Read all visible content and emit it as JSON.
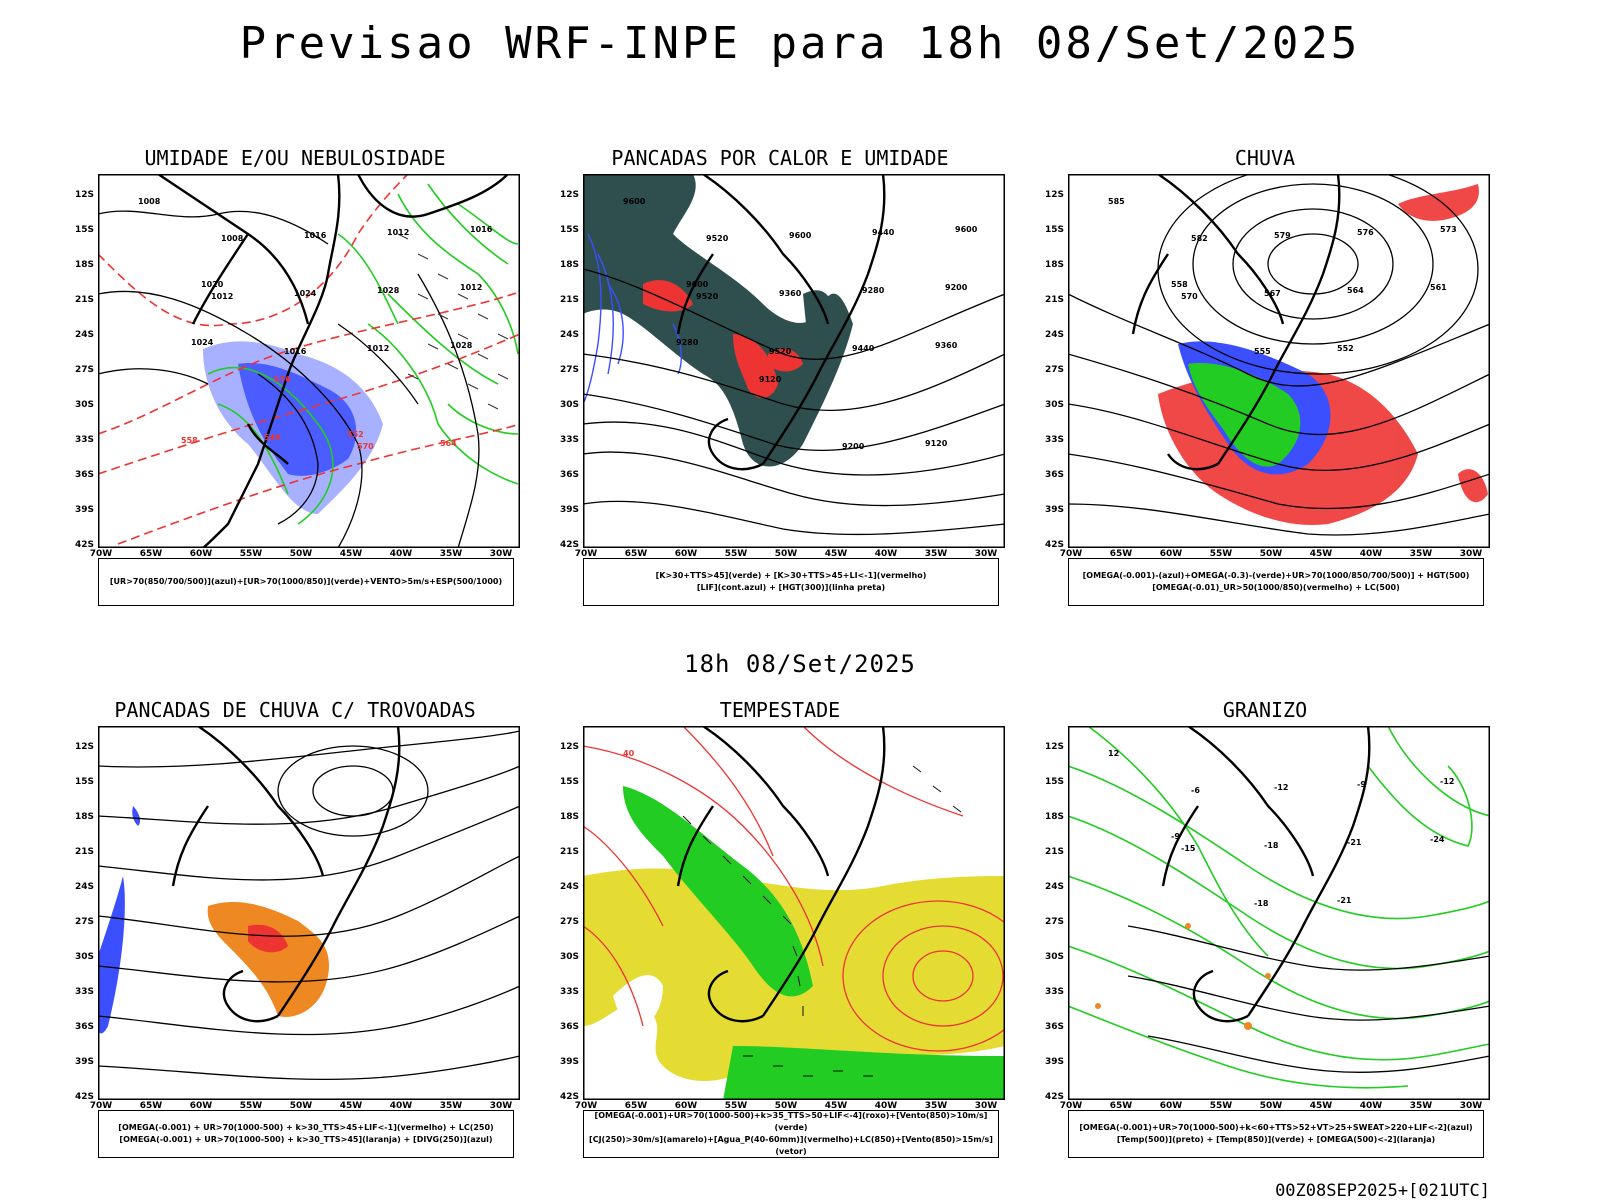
{
  "page": {
    "title": "Previsao WRF-INPE  para 18h 08/Set/2025",
    "subtitle": "18h 08/Set/2025",
    "footer": "00Z08SEP2025+[021UTC]"
  },
  "axes": {
    "lat_labels": [
      "12S",
      "15S",
      "18S",
      "21S",
      "24S",
      "27S",
      "30S",
      "33S",
      "36S",
      "39S",
      "42S"
    ],
    "lon_labels": [
      "70W",
      "65W",
      "60W",
      "55W",
      "50W",
      "45W",
      "40W",
      "35W",
      "30W"
    ]
  },
  "colors": {
    "blue": "#3b4fff",
    "green": "#22cc22",
    "red": "#ee3333",
    "orange": "#ee8822",
    "yellow": "#e4dc33",
    "dark_teal": "#2f4f4f",
    "light_blue": "#9fa8ff"
  },
  "panels": [
    {
      "id": "umidade",
      "title": "UMIDADE E/OU NEBULOSIDADE",
      "legend": [
        "[UR>70(850/700/500)](azul)+[UR>70(1000/850)](verde)+VENTO>5m/s+ESP(500/1000)"
      ],
      "contour_labels": [
        "1008",
        "1008",
        "1016",
        "1012",
        "1016",
        "1012",
        "1024",
        "1028",
        "1012",
        "1020",
        "1016",
        "1012",
        "1028",
        "1024",
        "576",
        "570",
        "564",
        "558",
        "546",
        "552"
      ]
    },
    {
      "id": "pancadas_calor",
      "title": "PANCADAS POR CALOR E UMIDADE",
      "legend": [
        "[K>30+TTS>45](verde) + [K>30+TTS>45+LI<-1](vermelho)",
        "[LIF](cont.azul) + [HGT(300)](linha preta)"
      ],
      "contour_labels": [
        "9600",
        "9520",
        "9600",
        "9440",
        "9600",
        "9520",
        "9360",
        "9280",
        "9200",
        "9600",
        "9520",
        "9440",
        "9360",
        "9280",
        "9120",
        "9200",
        "9120"
      ]
    },
    {
      "id": "chuva",
      "title": "CHUVA",
      "legend": [
        "[OMEGA(-0.001)-(azul)+OMEGA(-0.3)-(verde)+UR>70(1000/850/700/500)] + HGT(500)",
        "[OMEGA(-0.01)_UR>50(1000/850)(vermelho) + LC(500)"
      ],
      "contour_labels": [
        "585",
        "582",
        "579",
        "576",
        "573",
        "570",
        "567",
        "564",
        "561",
        "558",
        "555",
        "552"
      ]
    },
    {
      "id": "trovoadas",
      "title": "PANCADAS DE CHUVA C/ TROVOADAS",
      "legend": [
        "[OMEGA(-0.001) + UR>70(1000-500) + k>30_TTS>45+LIF<-1](vermelho) + LC(250)",
        "[OMEGA(-0.001) + UR>70(1000-500) + k>30_TTS>45](laranja) + [DIVG(250)](azul)"
      ],
      "contour_labels": []
    },
    {
      "id": "tempestade",
      "title": "TEMPESTADE",
      "legend": [
        "[OMEGA(-0.001)+UR>70(1000-500)+k>35_TTS>50+LIF<-4](roxo)+[Vento(850)>10m/s](verde)",
        "[CJ(250)>30m/s](amarelo)+[Agua_P(40-60mm)](vermelho)+LC(850)+[Vento(850)>15m/s](vetor)"
      ],
      "contour_labels": [
        "40"
      ]
    },
    {
      "id": "granizo",
      "title": "GRANIZO",
      "legend": [
        "[OMEGA(-0.001)+UR>70(1000-500)+k<60+TTS>52+VT>25+SWEAT>220+LIF<-2](azul)",
        "[Temp(500)](preto) + [Temp(850)](verde) + [OMEGA(500)<-2](laranja)"
      ],
      "contour_labels": [
        "12",
        "-6",
        "-12",
        "-9",
        "-12",
        "-15",
        "-18",
        "-21",
        "-24",
        "-9",
        "-18",
        "-21"
      ]
    }
  ]
}
